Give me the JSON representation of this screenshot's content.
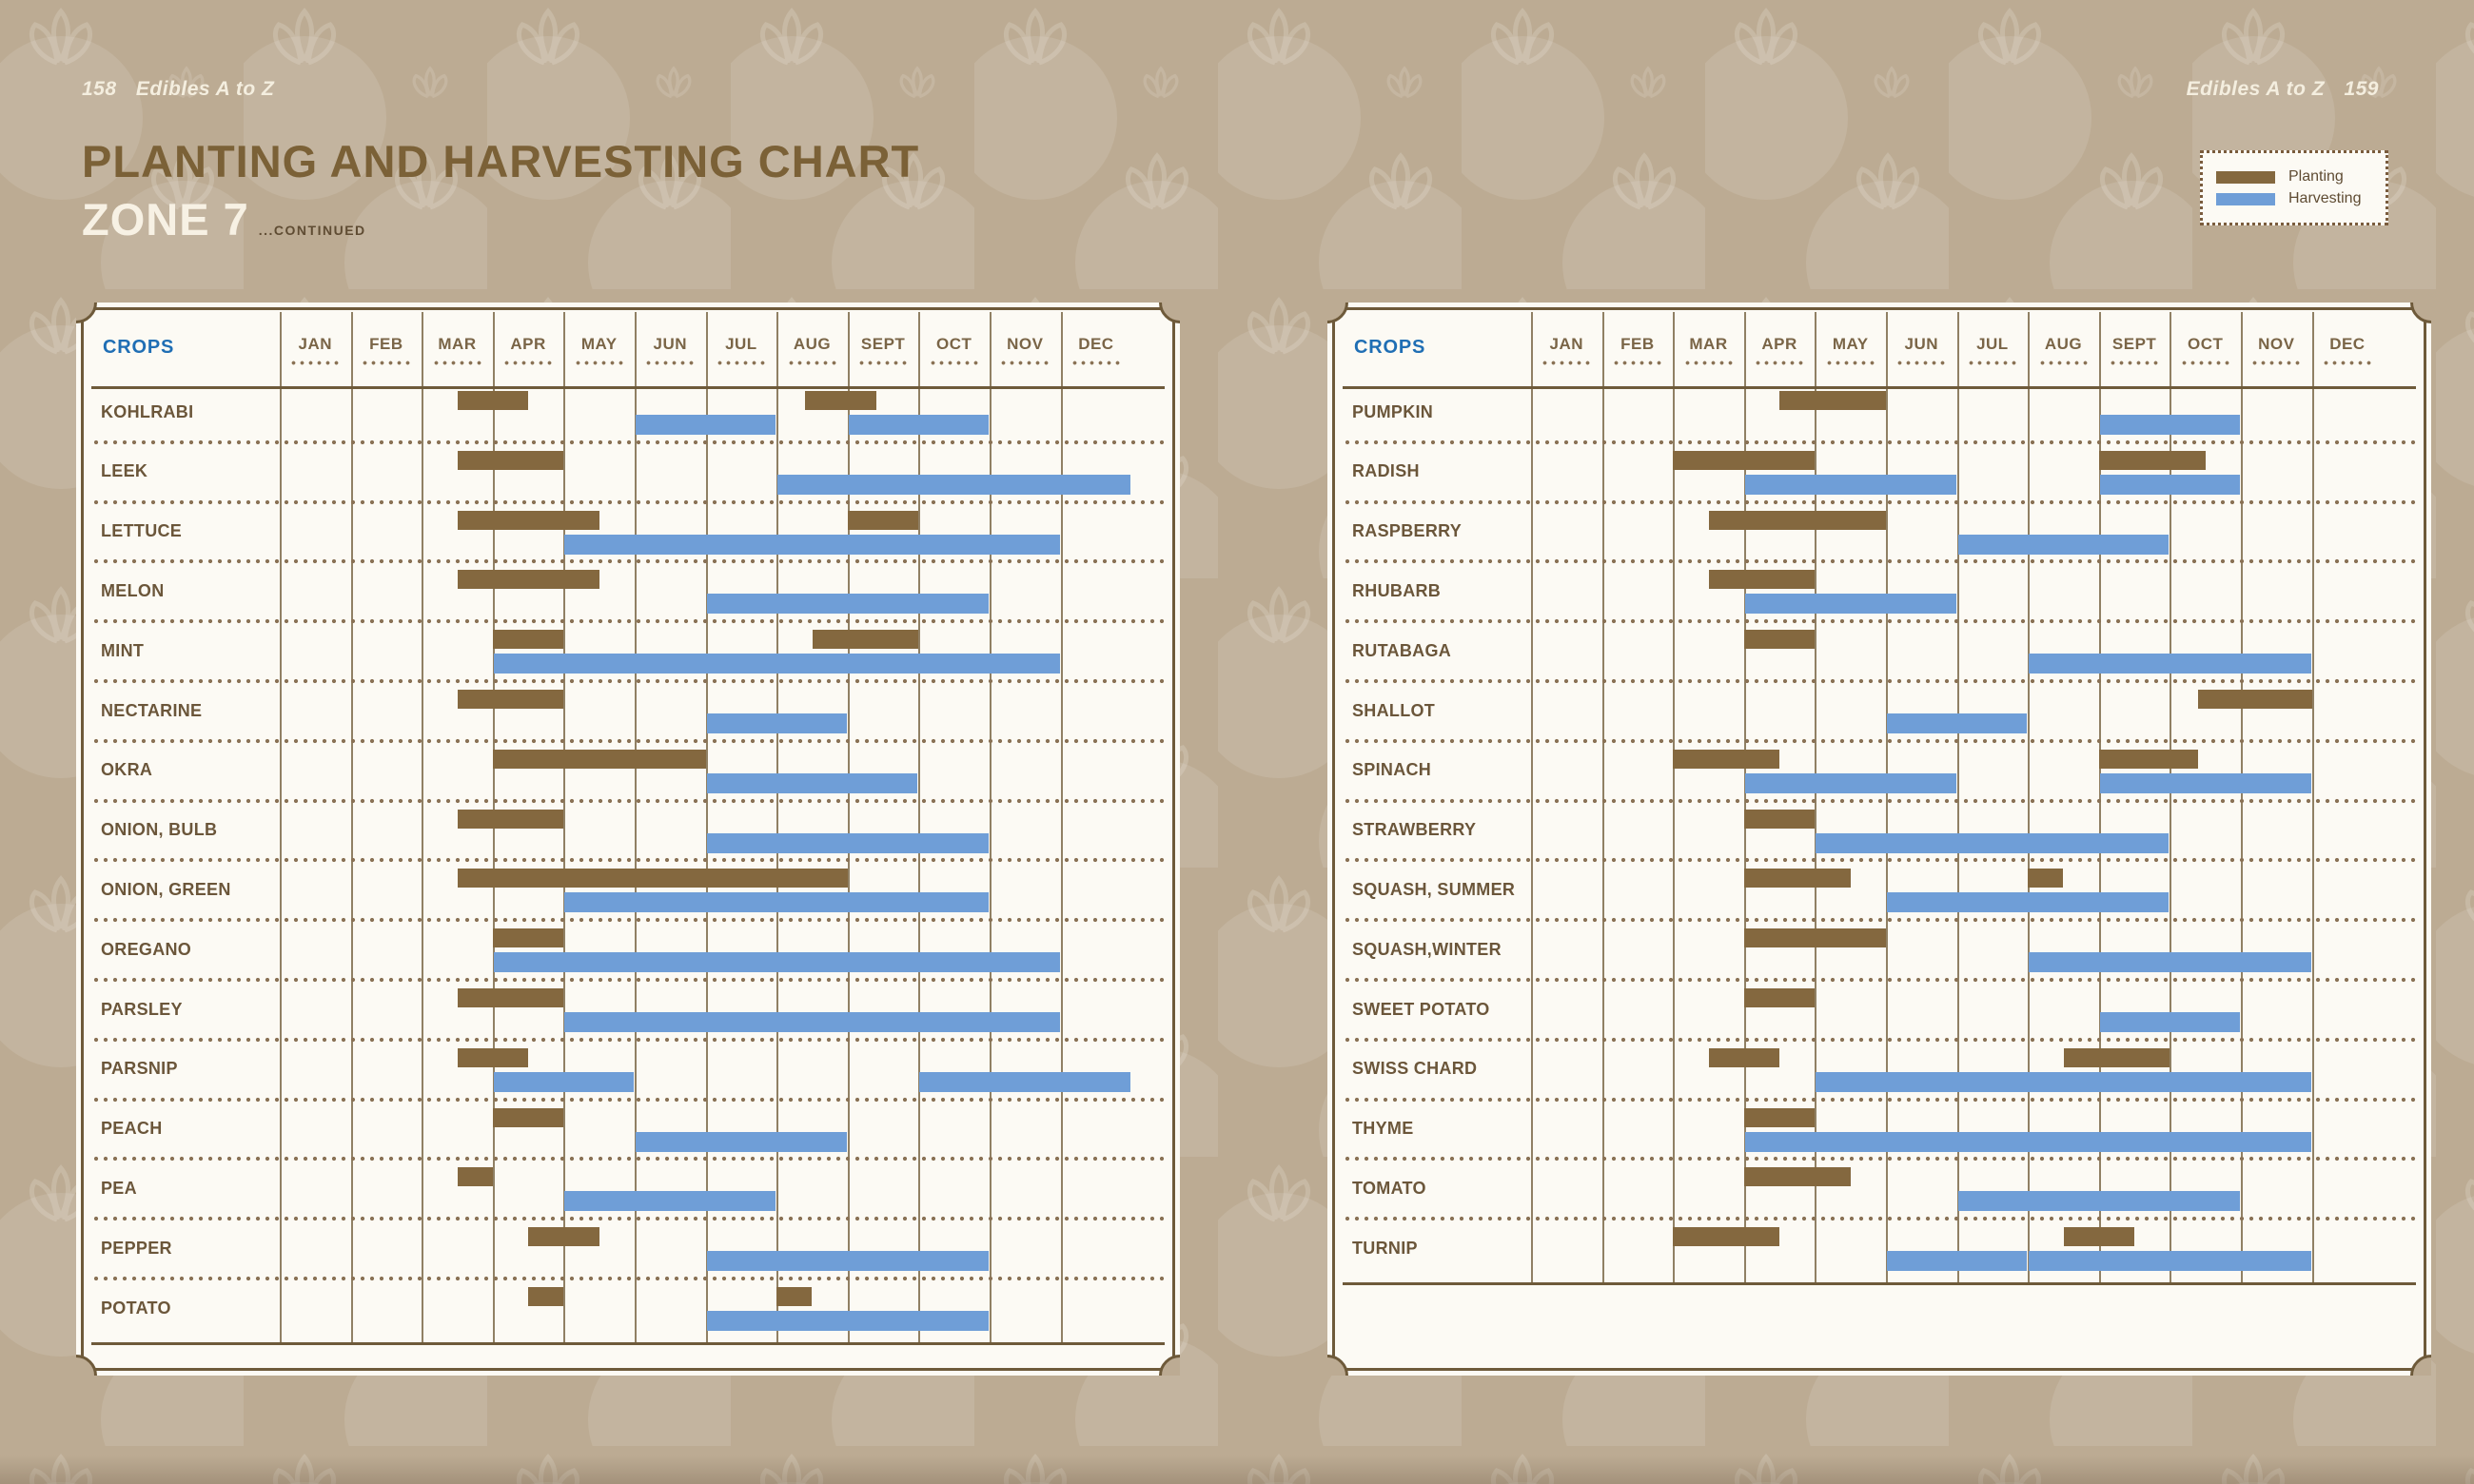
{
  "page": {
    "left_header": {
      "page_number": "158",
      "running_title": "Edibles A to Z"
    },
    "right_header": {
      "running_title": "Edibles A to Z",
      "page_number": "159"
    },
    "title_line1": "PLANTING AND HARVESTING CHART",
    "title_line2": "ZONE 7",
    "title_suffix": "...CONTINUED",
    "legend": {
      "planting_label": "Planting",
      "harvesting_label": "Harvesting"
    },
    "colors": {
      "background": "#bcab93",
      "card": "#fcfaf4",
      "planting": "#84683f",
      "harvesting": "#6f9ed7",
      "grid": "#7d6a4a",
      "crops_header_blue": "#1f6eb4",
      "title_brown": "#7b6137",
      "cream": "#f7f1e4"
    }
  },
  "chart_data": {
    "type": "gantt",
    "title": "Planting and Harvesting Chart — Zone 7 (continued)",
    "unit": "month index, 0 = start of JAN ... 12 = end of DEC",
    "crops_header": "CROPS",
    "months": [
      "JAN",
      "FEB",
      "MAR",
      "APR",
      "MAY",
      "JUN",
      "JUL",
      "AUG",
      "SEPT",
      "OCT",
      "NOV",
      "DEC"
    ],
    "series_types": [
      "planting",
      "harvesting"
    ],
    "legend_position": "top-right",
    "charts": [
      {
        "side": "left-page",
        "crops": [
          {
            "name": "KOHLRABI",
            "planting": [
              [
                2.5,
                3.5
              ],
              [
                7.4,
                8.4
              ]
            ],
            "harvesting": [
              [
                5,
                7
              ],
              [
                8,
                10
              ]
            ]
          },
          {
            "name": "LEEK",
            "planting": [
              [
                2.5,
                4
              ]
            ],
            "harvesting": [
              [
                7,
                12
              ]
            ]
          },
          {
            "name": "LETTUCE",
            "planting": [
              [
                2.5,
                4.5
              ],
              [
                8,
                9
              ]
            ],
            "harvesting": [
              [
                4,
                11
              ]
            ]
          },
          {
            "name": "MELON",
            "planting": [
              [
                2.5,
                4.5
              ]
            ],
            "harvesting": [
              [
                6,
                10
              ]
            ]
          },
          {
            "name": "MINT",
            "planting": [
              [
                3,
                4
              ],
              [
                7.5,
                9
              ]
            ],
            "harvesting": [
              [
                3,
                11
              ]
            ]
          },
          {
            "name": "NECTARINE",
            "planting": [
              [
                2.5,
                4
              ]
            ],
            "harvesting": [
              [
                6,
                8
              ]
            ]
          },
          {
            "name": "OKRA",
            "planting": [
              [
                3,
                6
              ]
            ],
            "harvesting": [
              [
                6,
                9
              ]
            ]
          },
          {
            "name": "ONION, BULB",
            "planting": [
              [
                2.5,
                4
              ]
            ],
            "harvesting": [
              [
                6,
                10
              ]
            ]
          },
          {
            "name": "ONION, GREEN",
            "planting": [
              [
                2.5,
                8
              ]
            ],
            "harvesting": [
              [
                4,
                10
              ]
            ]
          },
          {
            "name": "OREGANO",
            "planting": [
              [
                3,
                4
              ]
            ],
            "harvesting": [
              [
                3,
                11
              ]
            ]
          },
          {
            "name": "PARSLEY",
            "planting": [
              [
                2.5,
                4
              ]
            ],
            "harvesting": [
              [
                4,
                11
              ]
            ]
          },
          {
            "name": "PARSNIP",
            "planting": [
              [
                2.5,
                3.5
              ]
            ],
            "harvesting": [
              [
                3,
                5
              ],
              [
                9,
                12
              ]
            ]
          },
          {
            "name": "PEACH",
            "planting": [
              [
                3,
                4
              ]
            ],
            "harvesting": [
              [
                5,
                8
              ]
            ]
          },
          {
            "name": "PEA",
            "planting": [
              [
                2.5,
                3
              ]
            ],
            "harvesting": [
              [
                4,
                7
              ]
            ]
          },
          {
            "name": "PEPPER",
            "planting": [
              [
                3.5,
                4.5
              ]
            ],
            "harvesting": [
              [
                6,
                10
              ]
            ]
          },
          {
            "name": "POTATO",
            "planting": [
              [
                3.5,
                4
              ],
              [
                7,
                7.5
              ]
            ],
            "harvesting": [
              [
                6,
                10
              ]
            ]
          }
        ]
      },
      {
        "side": "right-page",
        "crops": [
          {
            "name": "PUMPKIN",
            "planting": [
              [
                3.5,
                5
              ]
            ],
            "harvesting": [
              [
                8,
                10
              ]
            ]
          },
          {
            "name": "RADISH",
            "planting": [
              [
                2,
                4
              ],
              [
                8,
                9.5
              ]
            ],
            "harvesting": [
              [
                3,
                6
              ],
              [
                8,
                10
              ]
            ]
          },
          {
            "name": "RASPBERRY",
            "planting": [
              [
                2.5,
                5
              ]
            ],
            "harvesting": [
              [
                6,
                9
              ]
            ]
          },
          {
            "name": "RHUBARB",
            "planting": [
              [
                2.5,
                4
              ]
            ],
            "harvesting": [
              [
                3,
                6
              ]
            ]
          },
          {
            "name": "RUTABAGA",
            "planting": [
              [
                3,
                4
              ]
            ],
            "harvesting": [
              [
                7,
                11
              ]
            ]
          },
          {
            "name": "SHALLOT",
            "planting": [
              [
                9.4,
                11
              ]
            ],
            "harvesting": [
              [
                5,
                7
              ]
            ]
          },
          {
            "name": "SPINACH",
            "planting": [
              [
                2,
                3.5
              ],
              [
                8,
                9.4
              ]
            ],
            "harvesting": [
              [
                3,
                6
              ],
              [
                8,
                11
              ]
            ]
          },
          {
            "name": "STRAWBERRY",
            "planting": [
              [
                3,
                4
              ]
            ],
            "harvesting": [
              [
                4,
                9
              ]
            ]
          },
          {
            "name": "SQUASH, SUMMER",
            "planting": [
              [
                3,
                4.5
              ],
              [
                7,
                7.5
              ]
            ],
            "harvesting": [
              [
                5,
                9
              ]
            ]
          },
          {
            "name": "SQUASH,WINTER",
            "planting": [
              [
                3,
                5
              ]
            ],
            "harvesting": [
              [
                7,
                11
              ]
            ]
          },
          {
            "name": "SWEET POTATO",
            "planting": [
              [
                3,
                4
              ]
            ],
            "harvesting": [
              [
                8,
                10
              ]
            ]
          },
          {
            "name": "SWISS CHARD",
            "planting": [
              [
                2.5,
                3.5
              ],
              [
                7.5,
                9
              ]
            ],
            "harvesting": [
              [
                4,
                11
              ]
            ]
          },
          {
            "name": "THYME",
            "planting": [
              [
                3,
                4
              ]
            ],
            "harvesting": [
              [
                3,
                11
              ]
            ]
          },
          {
            "name": "TOMATO",
            "planting": [
              [
                3,
                4.5
              ]
            ],
            "harvesting": [
              [
                6,
                10
              ]
            ]
          },
          {
            "name": "TURNIP",
            "planting": [
              [
                2,
                3.5
              ],
              [
                7.5,
                8.5
              ]
            ],
            "harvesting": [
              [
                5,
                7
              ],
              [
                7,
                11
              ]
            ]
          }
        ]
      }
    ]
  }
}
